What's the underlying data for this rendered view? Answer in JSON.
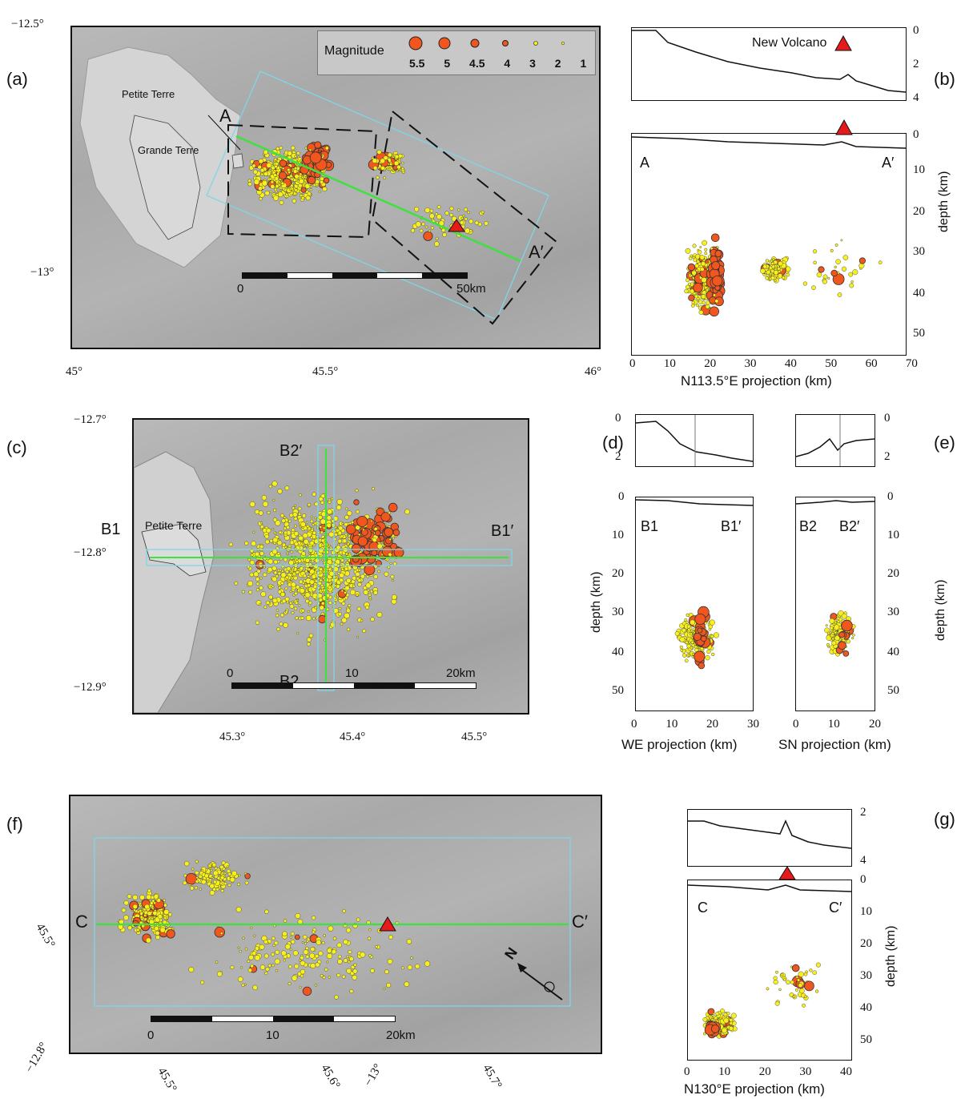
{
  "panel_a": {
    "label": "(a)",
    "lat_ticks": [
      "−12.5°",
      "−13°"
    ],
    "lon_ticks": [
      "45°",
      "45.5°",
      "46°"
    ],
    "legend": {
      "title": "Magnitude",
      "values": [
        "5.5",
        "5",
        "4.5",
        "4",
        "3",
        "2",
        "1"
      ]
    },
    "place_labels": [
      "Petite Terre",
      "Grande Terre"
    ],
    "profile_start": "A",
    "profile_end": "A′",
    "scale_start": "0",
    "scale_end": "50km"
  },
  "panel_b": {
    "label": "(b)",
    "volcano_label": "New Volcano",
    "bathy_ticks": [
      "0",
      "2",
      "4"
    ],
    "depth_ticks": [
      "0",
      "10",
      "20",
      "30",
      "40",
      "50"
    ],
    "x_ticks": [
      "0",
      "10",
      "20",
      "30",
      "40",
      "50",
      "60",
      "70"
    ],
    "xlabel": "N113.5°E projection (km)",
    "ylabel": "depth (km)",
    "start": "A",
    "end": "A′"
  },
  "panel_c": {
    "label": "(c)",
    "lat_ticks": [
      "−12.7°",
      "−12.8°",
      "−12.9°"
    ],
    "lon_ticks": [
      "45.3°",
      "45.4°",
      "45.5°"
    ],
    "place_labels": [
      "Petite Terre"
    ],
    "b1": "B1",
    "b1p": "B1′",
    "b2": "B2",
    "b2p": "B2′",
    "scale": [
      "0",
      "10",
      "20km"
    ]
  },
  "panel_d": {
    "label": "(d)",
    "bathy_ticks": [
      "0",
      "2"
    ],
    "depth_ticks": [
      "0",
      "10",
      "20",
      "30",
      "40",
      "50"
    ],
    "x_ticks": [
      "0",
      "10",
      "20",
      "30"
    ],
    "xlabel": "WE projection (km)",
    "ylabel": "depth (km)",
    "start": "B1",
    "end": "B1′"
  },
  "panel_e": {
    "label": "(e)",
    "bathy_ticks": [
      "0",
      "2"
    ],
    "depth_ticks": [
      "0",
      "10",
      "20",
      "30",
      "40",
      "50"
    ],
    "x_ticks": [
      "0",
      "10",
      "20"
    ],
    "xlabel": "SN projection (km)",
    "ylabel": "depth (km)",
    "start": "B2",
    "end": "B2′"
  },
  "panel_f": {
    "label": "(f)",
    "lat_ticks": [
      "45.5°",
      "−12.8°",
      "−13°"
    ],
    "lon_ticks": [
      "45.5°",
      "45.6°",
      "45.7°"
    ],
    "start": "C",
    "end": "C′",
    "north": "N",
    "scale": [
      "0",
      "10",
      "20km"
    ]
  },
  "panel_g": {
    "label": "(g)",
    "bathy_ticks": [
      "2",
      "4"
    ],
    "depth_ticks": [
      "0",
      "10",
      "20",
      "30",
      "40",
      "50"
    ],
    "x_ticks": [
      "0",
      "10",
      "20",
      "30",
      "40"
    ],
    "xlabel": "N130°E projection (km)",
    "ylabel": "depth (km)",
    "start": "C",
    "end": "C′"
  },
  "colors": {
    "yellow": "#f7f01e",
    "orange": "#f0561e",
    "volcano": "#e51b1b",
    "profile": "#3ee23e",
    "box": "#7fd6e6"
  }
}
